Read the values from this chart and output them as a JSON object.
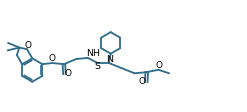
{
  "bg_color": "#ffffff",
  "line_color": "#2e6b8a",
  "line_width": 1.3,
  "figsize": [
    2.47,
    1.12
  ],
  "dpi": 100,
  "xlim": [
    0,
    10.5
  ],
  "ylim": [
    0,
    4.5
  ]
}
